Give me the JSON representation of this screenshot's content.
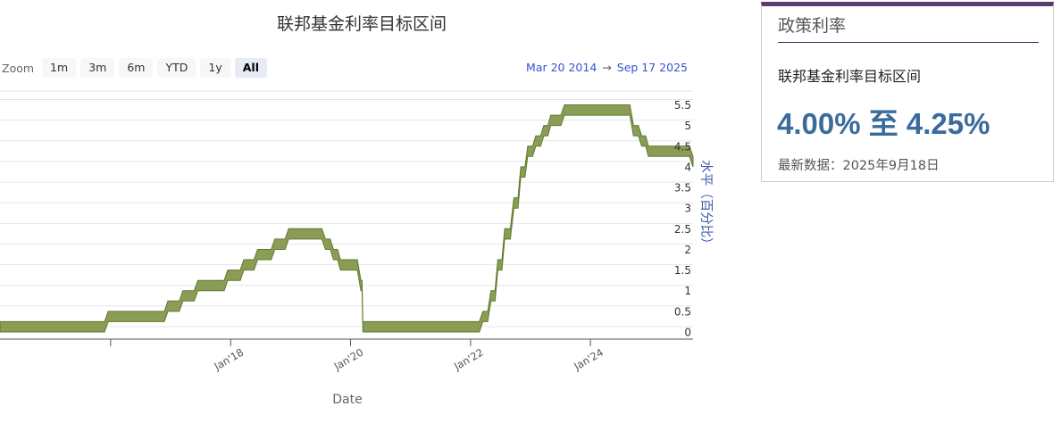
{
  "chart_data": {
    "type": "area",
    "title": "联邦基金利率目标区间",
    "xlabel": "Date",
    "ylabel": "水平（百分比）",
    "ylim": [
      0,
      5.5
    ],
    "y_ticks": [
      "0",
      "0.5",
      "1",
      "1.5",
      "2",
      "2.5",
      "3",
      "3.5",
      "4",
      "4.5",
      "5",
      "5.5"
    ],
    "x_ticks": [
      {
        "label": "Jan'18",
        "date": "2018-01-01"
      },
      {
        "label": "Jan'20",
        "date": "2020-01-01"
      },
      {
        "label": "Jan'22",
        "date": "2022-01-01"
      },
      {
        "label": "Jan'24",
        "date": "2024-01-01"
      }
    ],
    "x_range": [
      "2014-03-20",
      "2025-09-17"
    ],
    "grid": true,
    "series": [
      {
        "color": "#8b9d55",
        "points": [
          {
            "date": "2014-03-20",
            "lower": 0.0,
            "upper": 0.25
          },
          {
            "date": "2015-12-17",
            "lower": 0.25,
            "upper": 0.5
          },
          {
            "date": "2016-12-15",
            "lower": 0.5,
            "upper": 0.75
          },
          {
            "date": "2017-03-16",
            "lower": 0.75,
            "upper": 1.0
          },
          {
            "date": "2017-06-15",
            "lower": 1.0,
            "upper": 1.25
          },
          {
            "date": "2017-12-14",
            "lower": 1.25,
            "upper": 1.5
          },
          {
            "date": "2018-03-22",
            "lower": 1.5,
            "upper": 1.75
          },
          {
            "date": "2018-06-14",
            "lower": 1.75,
            "upper": 2.0
          },
          {
            "date": "2018-09-27",
            "lower": 2.0,
            "upper": 2.25
          },
          {
            "date": "2018-12-20",
            "lower": 2.25,
            "upper": 2.5
          },
          {
            "date": "2019-08-01",
            "lower": 2.0,
            "upper": 2.25
          },
          {
            "date": "2019-09-19",
            "lower": 1.75,
            "upper": 2.0
          },
          {
            "date": "2019-10-31",
            "lower": 1.5,
            "upper": 1.75
          },
          {
            "date": "2020-03-04",
            "lower": 1.0,
            "upper": 1.25
          },
          {
            "date": "2020-03-16",
            "lower": 0.0,
            "upper": 0.25
          },
          {
            "date": "2022-03-17",
            "lower": 0.25,
            "upper": 0.5
          },
          {
            "date": "2022-05-05",
            "lower": 0.75,
            "upper": 1.0
          },
          {
            "date": "2022-06-16",
            "lower": 1.5,
            "upper": 1.75
          },
          {
            "date": "2022-07-28",
            "lower": 2.25,
            "upper": 2.5
          },
          {
            "date": "2022-09-22",
            "lower": 3.0,
            "upper": 3.25
          },
          {
            "date": "2022-11-03",
            "lower": 3.75,
            "upper": 4.0
          },
          {
            "date": "2022-12-15",
            "lower": 4.25,
            "upper": 4.5
          },
          {
            "date": "2023-02-02",
            "lower": 4.5,
            "upper": 4.75
          },
          {
            "date": "2023-03-23",
            "lower": 4.75,
            "upper": 5.0
          },
          {
            "date": "2023-05-04",
            "lower": 5.0,
            "upper": 5.25
          },
          {
            "date": "2023-07-27",
            "lower": 5.25,
            "upper": 5.5
          },
          {
            "date": "2024-09-19",
            "lower": 4.75,
            "upper": 5.0
          },
          {
            "date": "2024-11-08",
            "lower": 4.5,
            "upper": 4.75
          },
          {
            "date": "2024-12-19",
            "lower": 4.25,
            "upper": 4.5
          },
          {
            "date": "2025-09-17",
            "lower": 4.0,
            "upper": 4.25
          }
        ]
      }
    ]
  },
  "zoom": {
    "label": "Zoom",
    "buttons": [
      "1m",
      "3m",
      "6m",
      "YTD",
      "1y",
      "All"
    ],
    "active": "All"
  },
  "range": {
    "from": "Mar 20 2014",
    "arrow": "→",
    "to": "Sep 17 2025"
  },
  "panel": {
    "heading": "政策利率",
    "label": "联邦基金利率目标区间",
    "value": "4.00% 至 4.25%",
    "note": "最新数据：2025年9月18日"
  },
  "colors": {
    "area": "#8b9d55",
    "area_stroke": "#5e7a30",
    "accent": "#3b6a9c",
    "panel_border": "#5b3a6e",
    "range_text": "#3355cc"
  }
}
